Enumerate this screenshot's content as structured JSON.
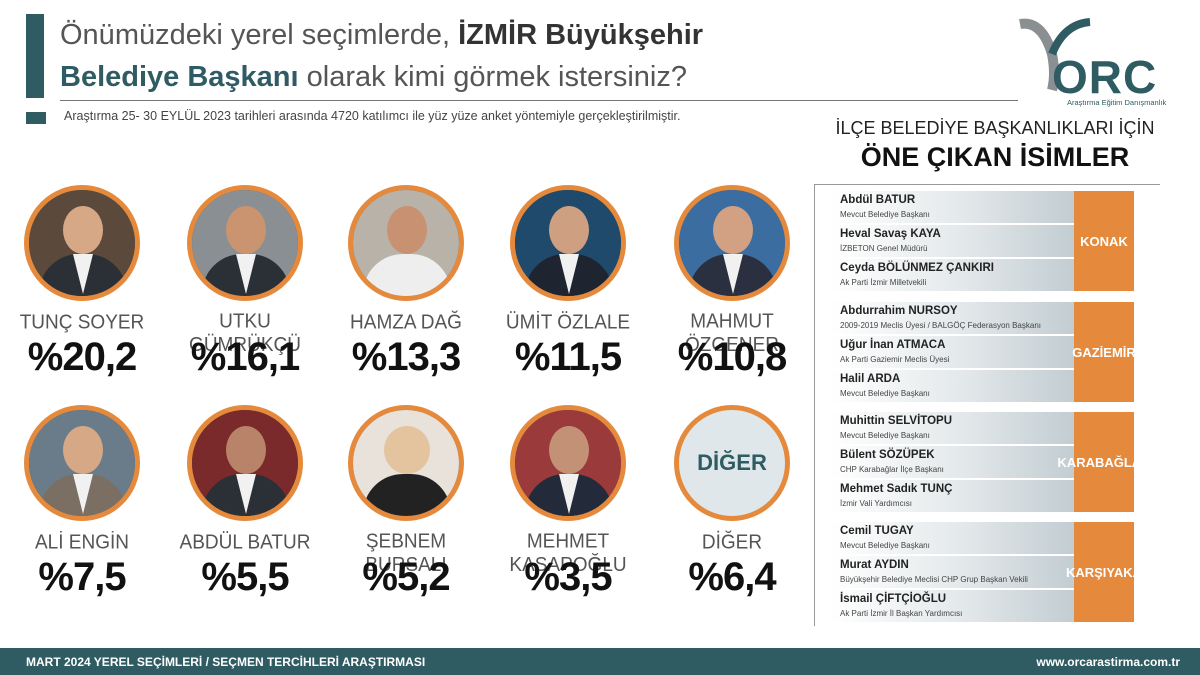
{
  "title": {
    "line1_normal": "Önümüzdeki yerel seçimlerde, ",
    "line1_bold": "İZMİR Büyükşehir",
    "line2_bold": "Belediye Başkanı",
    "line2_normal": " olarak kimi görmek istersiniz?"
  },
  "subtitle": "Araştırma 25- 30 EYLÜL 2023 tarihleri arasında 4720 katılımcı ile yüz yüze anket yöntemiyle gerçekleştirilmiştir.",
  "logo": {
    "text": "ORC",
    "tagline": "Araştırma Eğitim Danışmanlık"
  },
  "candidates": [
    {
      "name": "TUNÇ SOYER",
      "pct": "%20,2"
    },
    {
      "name": "UTKU GÜMRÜKÇÜ",
      "pct": "%16,1"
    },
    {
      "name": "HAMZA DAĞ",
      "pct": "%13,3"
    },
    {
      "name": "ÜMİT ÖZLALE",
      "pct": "%11,5"
    },
    {
      "name": "MAHMUT ÖZGENER",
      "pct": "%10,8"
    },
    {
      "name": "ALİ ENGİN",
      "pct": "%7,5"
    },
    {
      "name": "ABDÜL BATUR",
      "pct": "%5,5"
    },
    {
      "name": "ŞEBNEM BURSALI",
      "pct": "%5,2"
    },
    {
      "name": "MEHMET KASAPOĞLU",
      "pct": "%3,5"
    },
    {
      "name": "DİĞER",
      "pct": "%6,4",
      "badge": "DİĞER"
    }
  ],
  "districts_header": {
    "line1": "İLÇE BELEDİYE BAŞKANLIKLARI İÇİN",
    "line2": "ÖNE ÇIKAN İSİMLER"
  },
  "districts": [
    {
      "district": "KONAK",
      "people": [
        {
          "name": "Abdül BATUR",
          "role": "Mevcut Belediye Başkanı"
        },
        {
          "name": "Heval Savaş KAYA",
          "role": "İZBETON Genel Müdürü"
        },
        {
          "name": "Ceyda BÖLÜNMEZ ÇANKIRI",
          "role": "Ak Parti İzmir Milletvekili"
        }
      ]
    },
    {
      "district": "GAZİEMİR",
      "people": [
        {
          "name": "Abdurrahim NURSOY",
          "role": "2009-2019 Meclis Üyesi /  BALGÖÇ Federasyon Başkanı"
        },
        {
          "name": "Uğur İnan ATMACA",
          "role": "Ak Parti Gaziemir Meclis Üyesi"
        },
        {
          "name": "Halil ARDA",
          "role": "Mevcut Belediye Başkanı"
        }
      ]
    },
    {
      "district": "KARABAĞLAR",
      "people": [
        {
          "name": "Muhittin SELVİTOPU",
          "role": "Mevcut Belediye Başkanı"
        },
        {
          "name": "Bülent SÖZÜPEK",
          "role": "CHP Karabağlar İlçe Başkanı"
        },
        {
          "name": "Mehmet Sadık TUNÇ",
          "role": "İzmir Vali Yardımcısı"
        }
      ]
    },
    {
      "district": "KARŞIYAKA",
      "people": [
        {
          "name": "Cemil TUGAY",
          "role": "Mevcut Belediye Başkanı"
        },
        {
          "name": "Murat AYDIN",
          "role": "Büyükşehir Belediye Meclisi CHP Grup Başkan Vekili"
        },
        {
          "name": "İsmail ÇİFTÇİOĞLU",
          "role": "Ak Parti İzmir İl Başkan Yardımcısı"
        }
      ]
    }
  ],
  "footer": {
    "left": "MART 2024 YEREL SEÇİMLERİ / SEÇMEN TERCİHLERİ ARAŞTIRMASI",
    "right": "www.orcarastirma.com.tr"
  },
  "colors": {
    "teal": "#2f5b63",
    "orange": "#e58a3c"
  }
}
